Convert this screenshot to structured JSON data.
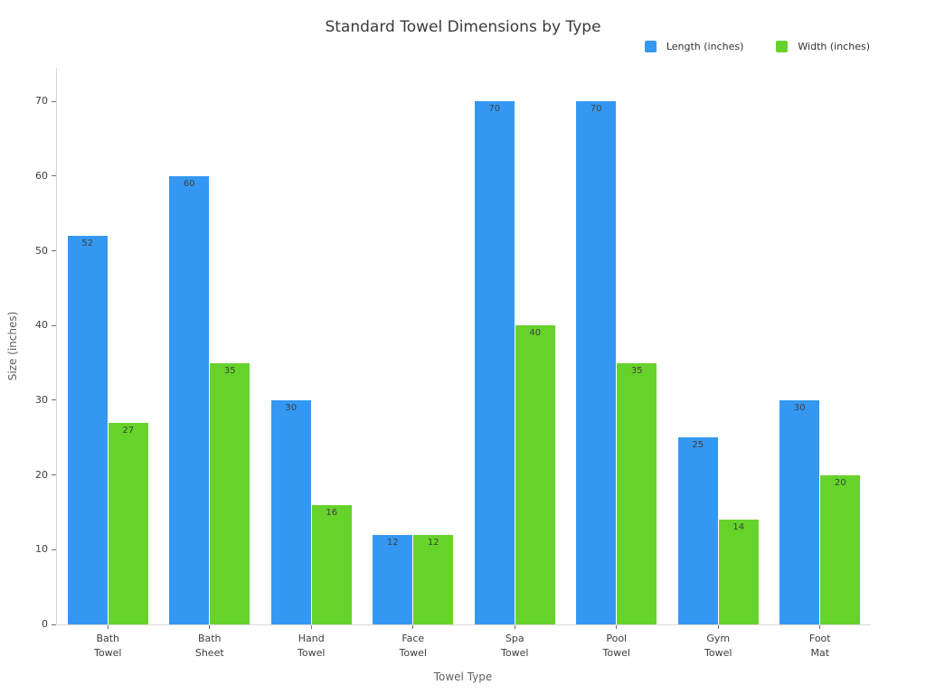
{
  "chart_data": {
    "type": "bar",
    "title": "Standard Towel Dimensions by Type",
    "xlabel": "Towel Type",
    "ylabel": "Size (inches)",
    "categories": [
      "Bath Towel",
      "Bath Sheet",
      "Hand Towel",
      "Face Towel",
      "Spa Towel",
      "Pool Towel",
      "Gym Towel",
      "Foot Mat"
    ],
    "series": [
      {
        "name": "Length (inches)",
        "color": "#3498F3",
        "values": [
          52,
          60,
          30,
          12,
          70,
          70,
          25,
          30
        ]
      },
      {
        "name": "Width (inches)",
        "color": "#66D32B",
        "values": [
          27,
          35,
          16,
          12,
          40,
          35,
          14,
          20
        ]
      }
    ],
    "yticks": [
      0,
      10,
      20,
      30,
      40,
      50,
      60,
      70
    ],
    "ylim": [
      0,
      74.5
    ],
    "grid": false,
    "legend_position": "top-right",
    "value_labels": "inside-top"
  },
  "colors": {
    "length_series": "#3498F3",
    "width_series": "#66D32B",
    "axis_line": "#d9d9d9",
    "tick_mark": "#6e6e6e",
    "tick_label": "#3d3d3d",
    "title_text": "#3a3a3a",
    "axis_title_text": "#5f5f5f",
    "value_label_text": "#3f3f3f"
  }
}
